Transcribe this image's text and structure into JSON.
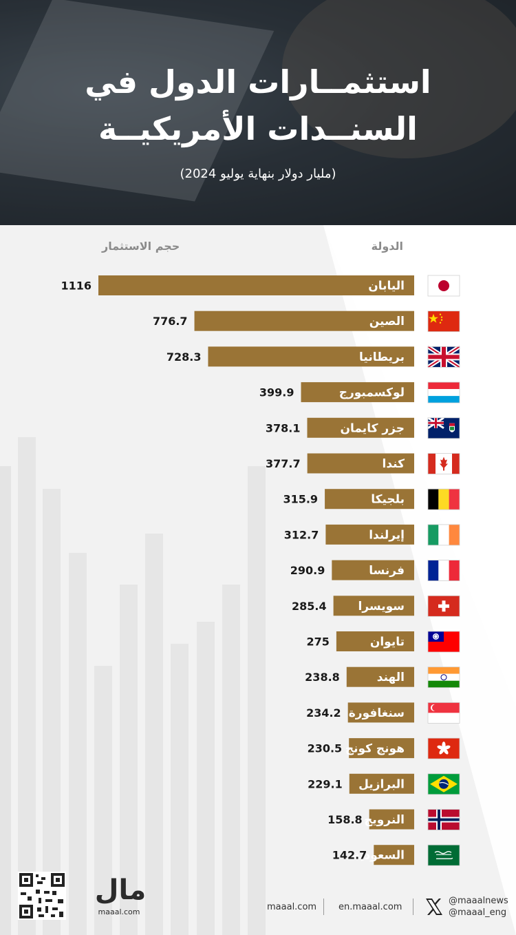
{
  "title": {
    "line1": "استثمــارات الدول في",
    "line2": "السنــدات الأمريكيــة",
    "subtitle": "(مليار دولار بنهاية يوليو 2024)"
  },
  "columns": {
    "country": "الدولة",
    "value": "حجم الاستثمار"
  },
  "colors": {
    "bar": "#9a7436",
    "header_bg": "#2f363d",
    "text": "#1a1a1a"
  },
  "chart_data": {
    "type": "bar",
    "orientation": "horizontal",
    "categories": [
      "اليابان",
      "الصين",
      "بريطانيا",
      "لوكسمبورج",
      "جزر كايمان",
      "كندا",
      "بلجيكا",
      "إيرلندا",
      "فرنسا",
      "سويسرا",
      "تايوان",
      "الهند",
      "سنغافورة",
      "هونج كونج",
      "البرازيل",
      "النرويج",
      "السعودية"
    ],
    "values": [
      1116,
      776.7,
      728.3,
      399.9,
      378.1,
      377.7,
      315.9,
      312.7,
      290.9,
      285.4,
      275,
      238.8,
      234.2,
      230.5,
      229.1,
      158.8,
      142.7
    ],
    "value_labels": [
      "1116",
      "776.7",
      "728.3",
      "399.9",
      "378.1",
      "377.7",
      "315.9",
      "312.7",
      "290.9",
      "285.4",
      "275",
      "238.8",
      "234.2",
      "230.5",
      "229.1",
      "158.8",
      "142.7"
    ],
    "flags": [
      "japan-flag",
      "china-flag",
      "uk-flag",
      "luxembourg-flag",
      "cayman-flag",
      "canada-flag",
      "belgium-flag",
      "ireland-flag",
      "france-flag",
      "switzerland-flag",
      "taiwan-flag",
      "india-flag",
      "singapore-flag",
      "hongkong-flag",
      "brazil-flag",
      "norway-flag",
      "saudi-flag"
    ],
    "xlabel": "حجم الاستثمار",
    "ylabel": "الدولة"
  },
  "footer": {
    "logo": "مال",
    "logo_sub": "maaal.com",
    "link1": "maaal.com",
    "link2": "en.maaal.com",
    "handle1": "@maaalnews",
    "handle2": "@maaal_eng",
    "icons": [
      "qr-code-icon",
      "x-icon"
    ]
  }
}
